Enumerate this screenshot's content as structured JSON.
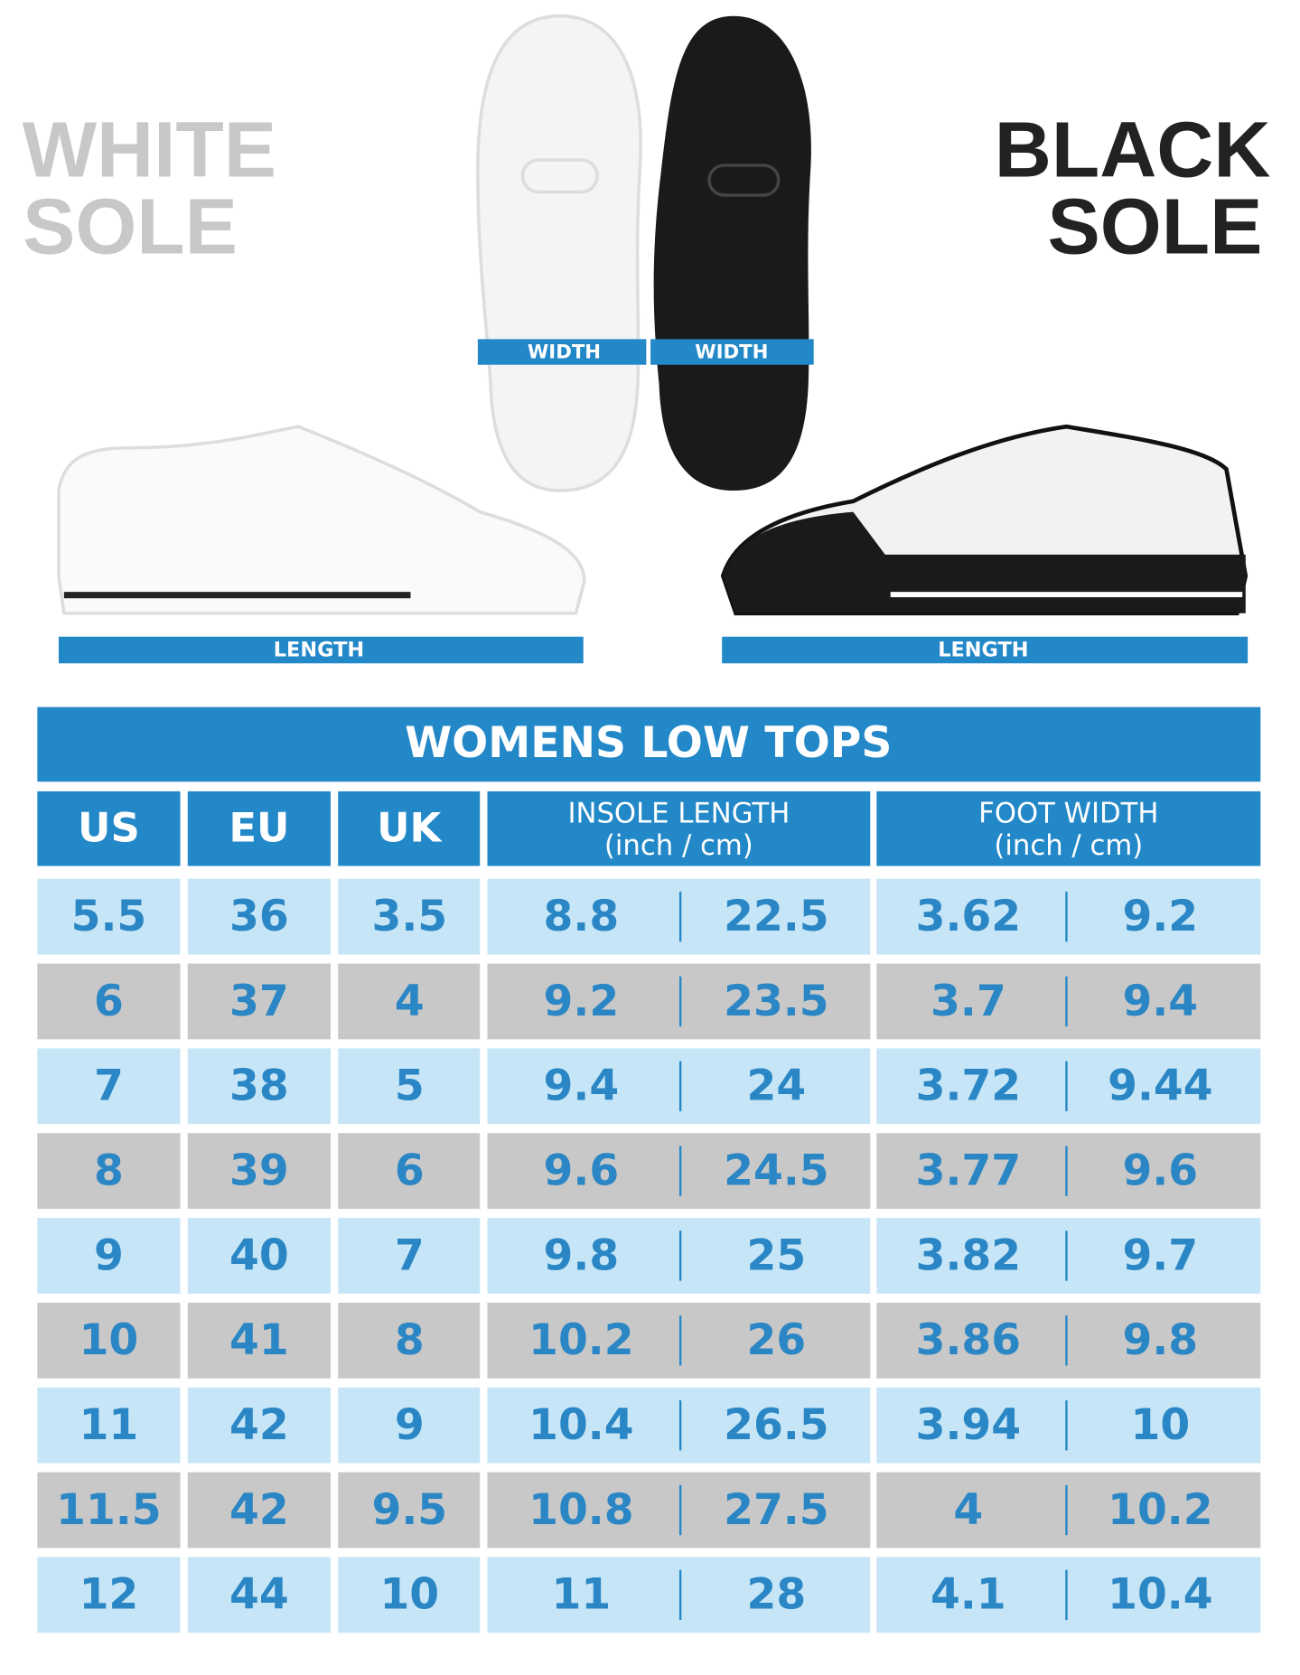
{
  "header": {
    "white_sole": [
      "WHITE",
      "SOLE"
    ],
    "black_sole": [
      "BLACK",
      "SOLE"
    ],
    "width_labels": [
      "WIDTH",
      "WIDTH"
    ],
    "length_labels": [
      "LENGTH",
      "LENGTH"
    ]
  },
  "table": {
    "title": "WOMENS LOW TOPS",
    "columns": [
      {
        "label": "US"
      },
      {
        "label": "EU"
      },
      {
        "label": "UK"
      },
      {
        "label": "INSOLE LENGTH",
        "sub": "(inch / cm)"
      },
      {
        "label": "FOOT WIDTH",
        "sub": "(inch / cm)"
      }
    ],
    "rows": [
      [
        "5.5",
        "36",
        "3.5",
        "8.8",
        "22.5",
        "3.62",
        "9.2"
      ],
      [
        "6",
        "37",
        "4",
        "9.2",
        "23.5",
        "3.7",
        "9.4"
      ],
      [
        "7",
        "38",
        "5",
        "9.4",
        "24",
        "3.72",
        "9.44"
      ],
      [
        "8",
        "39",
        "6",
        "9.6",
        "24.5",
        "3.77",
        "9.6"
      ],
      [
        "9",
        "40",
        "7",
        "9.8",
        "25",
        "3.82",
        "9.7"
      ],
      [
        "10",
        "41",
        "8",
        "10.2",
        "26",
        "3.86",
        "9.8"
      ],
      [
        "11",
        "42",
        "9",
        "10.4",
        "26.5",
        "3.94",
        "10"
      ],
      [
        "11.5",
        "42",
        "9.5",
        "10.8",
        "27.5",
        "4",
        "10.2"
      ],
      [
        "12",
        "44",
        "10",
        "11",
        "28",
        "4.1",
        "10.4"
      ]
    ]
  }
}
